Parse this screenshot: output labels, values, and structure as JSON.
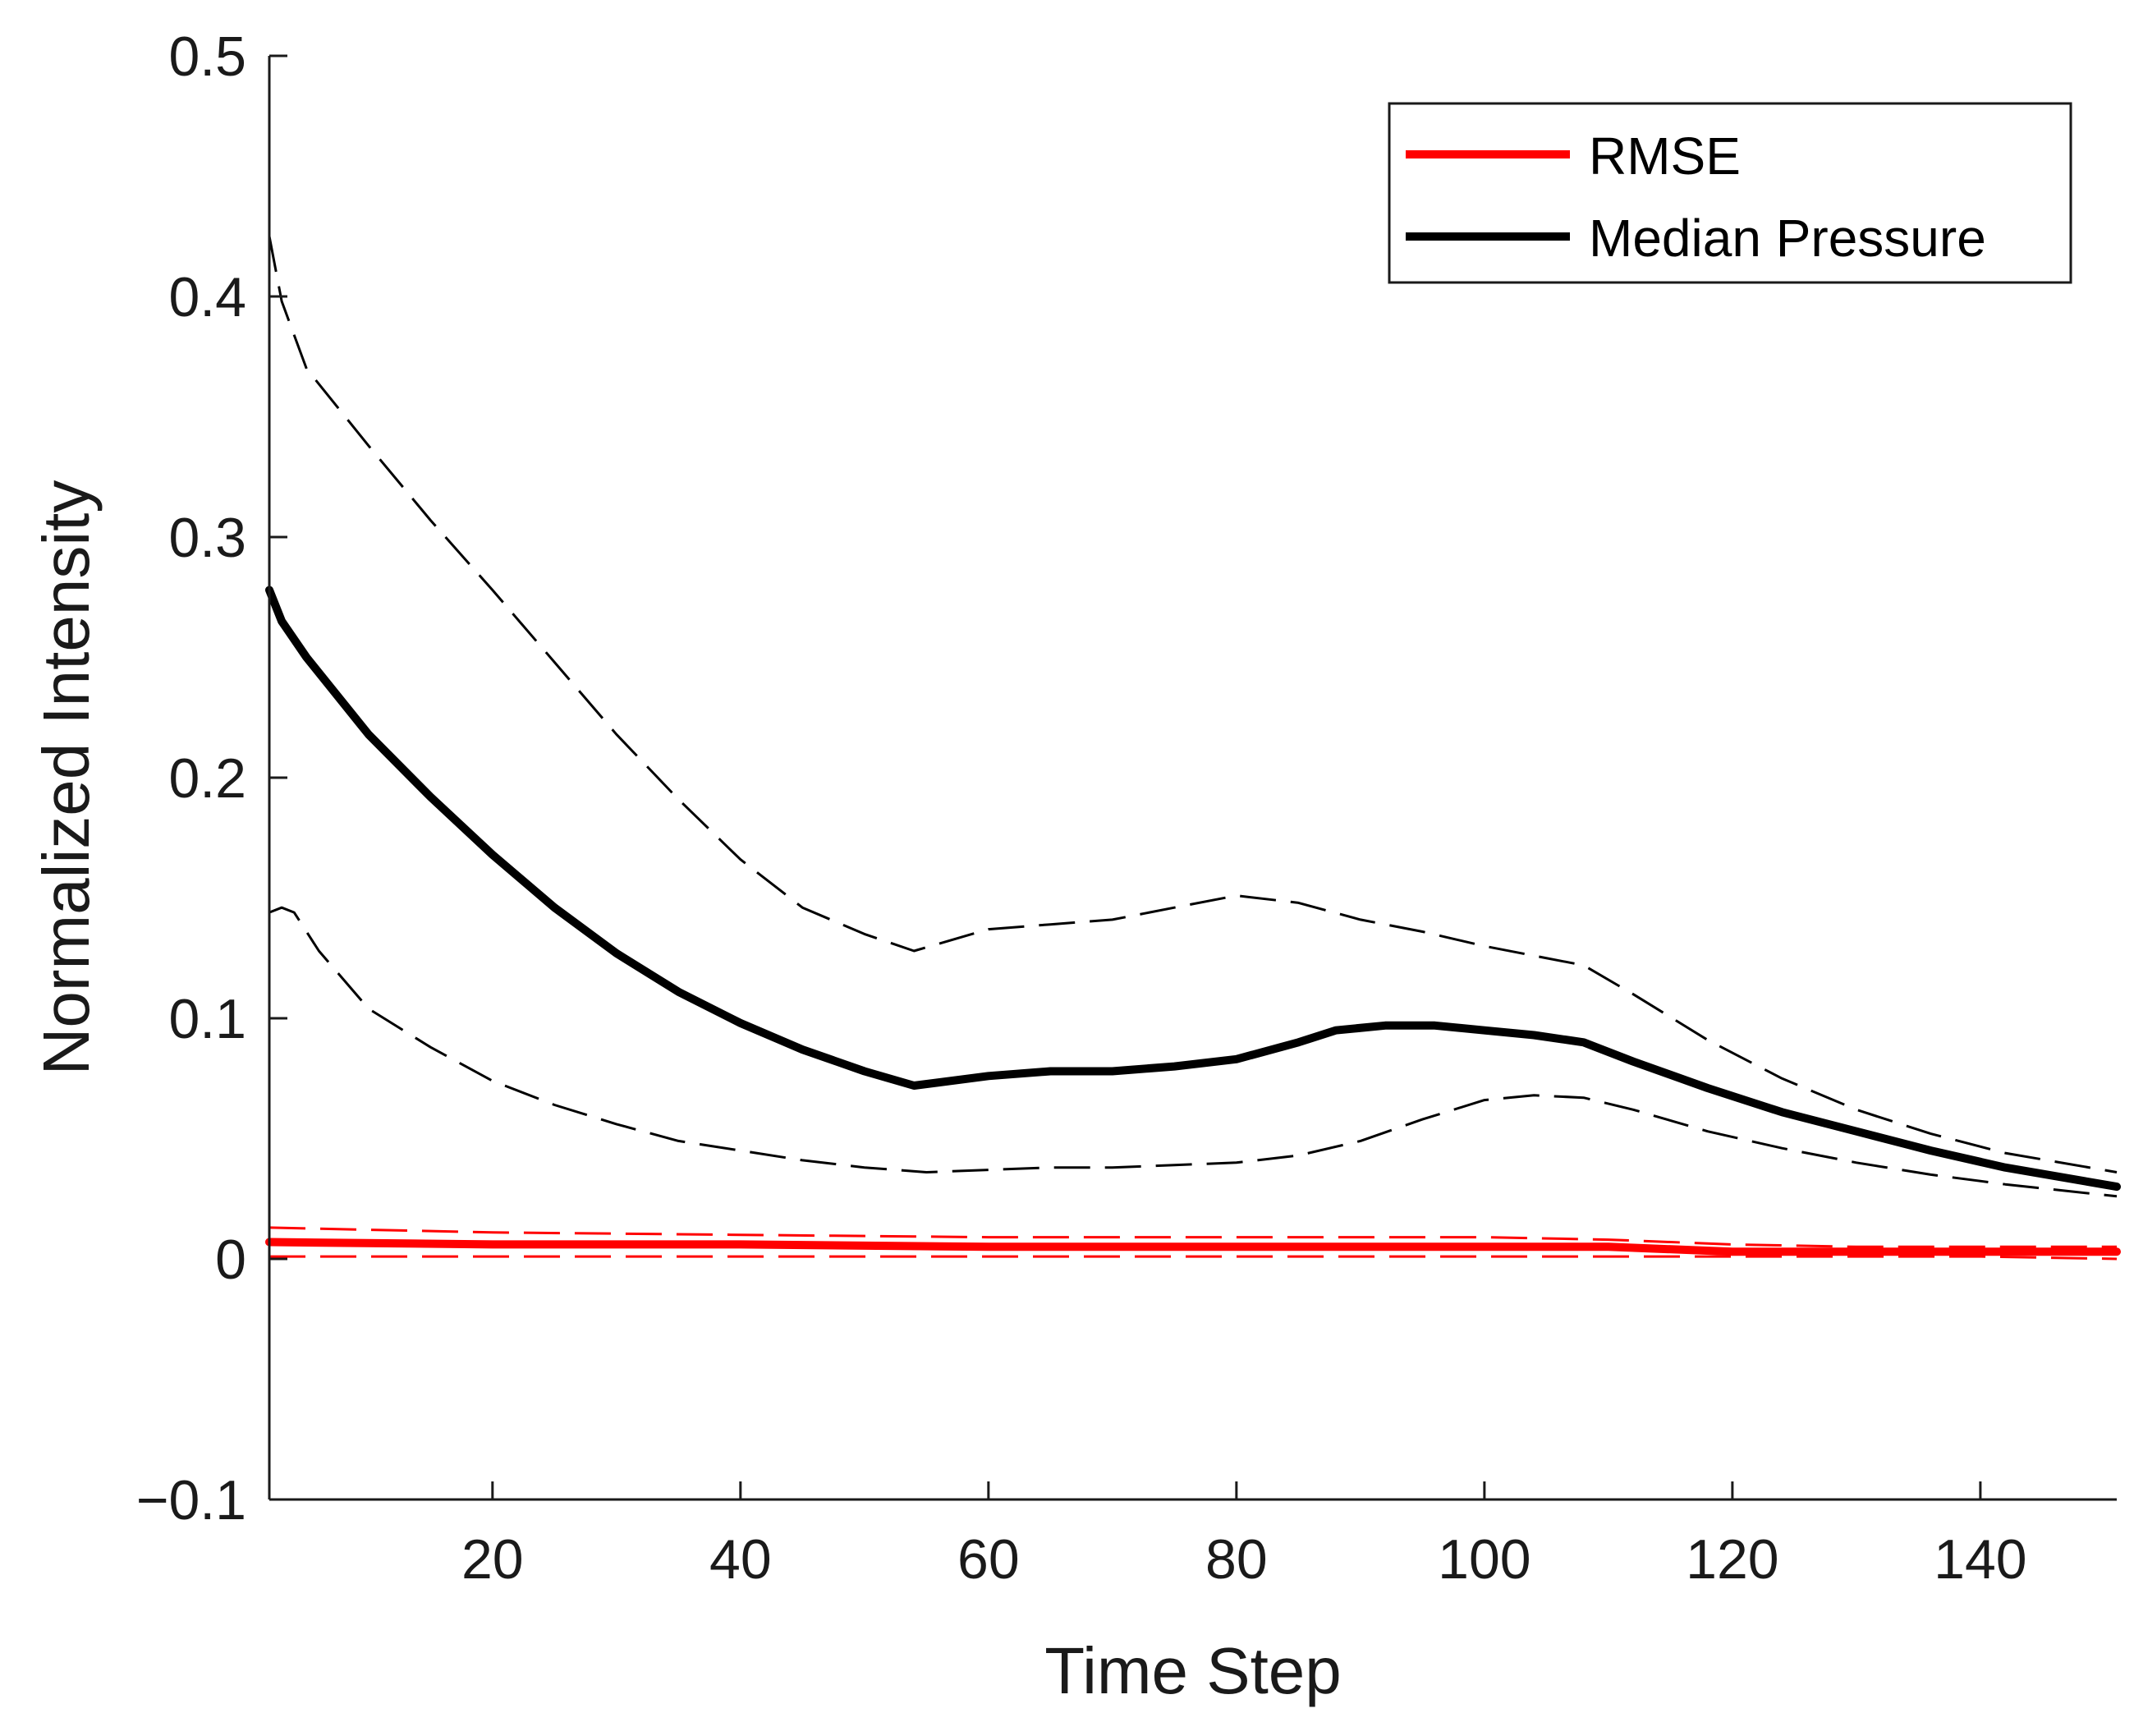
{
  "chart_data": {
    "type": "line",
    "title": "",
    "xlabel": "Time Step",
    "ylabel": "Normalized Intensity",
    "xlim": [
      2,
      151
    ],
    "ylim": [
      -0.1,
      0.5
    ],
    "xticks": [
      20,
      40,
      60,
      80,
      100,
      120,
      140
    ],
    "xtick_labels": [
      "20",
      "40",
      "60",
      "80",
      "100",
      "120",
      "140"
    ],
    "yticks": [
      -0.1,
      0,
      0.1,
      0.2,
      0.3,
      0.4,
      0.5
    ],
    "ytick_labels": [
      "−0.1",
      "0",
      "0.1",
      "0.2",
      "0.3",
      "0.4",
      "0.5"
    ],
    "grid": false,
    "legend_position": "top-right",
    "colors": {
      "rmse": "#ff0000",
      "median_pressure": "#000000",
      "axis": "#1a1a1a"
    },
    "series": [
      {
        "name": "Median Pressure",
        "legend_label": "Median Pressure",
        "style": "solid",
        "color": "#000000",
        "x": [
          2,
          3,
          5,
          10,
          15,
          20,
          25,
          30,
          35,
          40,
          45,
          50,
          54,
          60,
          65,
          70,
          75,
          80,
          85,
          88,
          92,
          96,
          100,
          104,
          108,
          112,
          118,
          124,
          130,
          136,
          142,
          151
        ],
        "y": [
          0.278,
          0.265,
          0.25,
          0.218,
          0.192,
          0.168,
          0.146,
          0.127,
          0.111,
          0.098,
          0.087,
          0.078,
          0.072,
          0.076,
          0.078,
          0.078,
          0.08,
          0.083,
          0.09,
          0.095,
          0.097,
          0.097,
          0.095,
          0.093,
          0.09,
          0.082,
          0.071,
          0.061,
          0.053,
          0.045,
          0.038,
          0.03
        ]
      },
      {
        "name": "Median Pressure upper bound",
        "legend_label": "",
        "style": "dashed",
        "color": "#000000",
        "x": [
          2,
          3,
          5,
          10,
          15,
          20,
          25,
          30,
          35,
          40,
          45,
          50,
          54,
          60,
          65,
          70,
          75,
          80,
          85,
          90,
          95,
          100,
          104,
          108,
          112,
          118,
          124,
          130,
          136,
          142,
          151
        ],
        "y": [
          0.425,
          0.398,
          0.37,
          0.338,
          0.307,
          0.278,
          0.248,
          0.218,
          0.191,
          0.166,
          0.146,
          0.135,
          0.128,
          0.137,
          0.139,
          0.141,
          0.146,
          0.151,
          0.148,
          0.141,
          0.136,
          0.13,
          0.126,
          0.122,
          0.11,
          0.091,
          0.075,
          0.062,
          0.052,
          0.044,
          0.036
        ]
      },
      {
        "name": "Median Pressure lower bound",
        "legend_label": "",
        "style": "dashed",
        "color": "#000000",
        "x": [
          2,
          3,
          4,
          6,
          10,
          15,
          20,
          25,
          30,
          35,
          40,
          45,
          50,
          55,
          60,
          65,
          70,
          75,
          80,
          85,
          90,
          95,
          100,
          104,
          108,
          112,
          118,
          124,
          130,
          136,
          142,
          151
        ],
        "y": [
          0.144,
          0.146,
          0.144,
          0.128,
          0.104,
          0.088,
          0.074,
          0.064,
          0.056,
          0.049,
          0.045,
          0.041,
          0.038,
          0.036,
          0.037,
          0.038,
          0.038,
          0.039,
          0.04,
          0.043,
          0.049,
          0.058,
          0.066,
          0.068,
          0.067,
          0.062,
          0.053,
          0.046,
          0.04,
          0.035,
          0.031,
          0.026
        ]
      },
      {
        "name": "RMSE",
        "legend_label": "RMSE",
        "style": "solid",
        "color": "#ff0000",
        "x": [
          2,
          20,
          40,
          60,
          80,
          100,
          110,
          120,
          130,
          140,
          151
        ],
        "y": [
          0.007,
          0.006,
          0.006,
          0.005,
          0.005,
          0.005,
          0.005,
          0.003,
          0.003,
          0.003,
          0.003
        ]
      },
      {
        "name": "RMSE upper bound",
        "legend_label": "",
        "style": "dashed",
        "color": "#ff0000",
        "x": [
          2,
          20,
          40,
          60,
          80,
          100,
          110,
          120,
          130,
          140,
          151
        ],
        "y": [
          0.013,
          0.011,
          0.01,
          0.009,
          0.009,
          0.009,
          0.008,
          0.006,
          0.005,
          0.005,
          0.005
        ]
      },
      {
        "name": "RMSE lower bound",
        "legend_label": "",
        "style": "dashed",
        "color": "#ff0000",
        "x": [
          2,
          20,
          40,
          60,
          80,
          100,
          110,
          120,
          130,
          140,
          151
        ],
        "y": [
          0.001,
          0.001,
          0.001,
          0.001,
          0.001,
          0.001,
          0.001,
          0.001,
          0.001,
          0.001,
          0.0
        ]
      }
    ]
  }
}
